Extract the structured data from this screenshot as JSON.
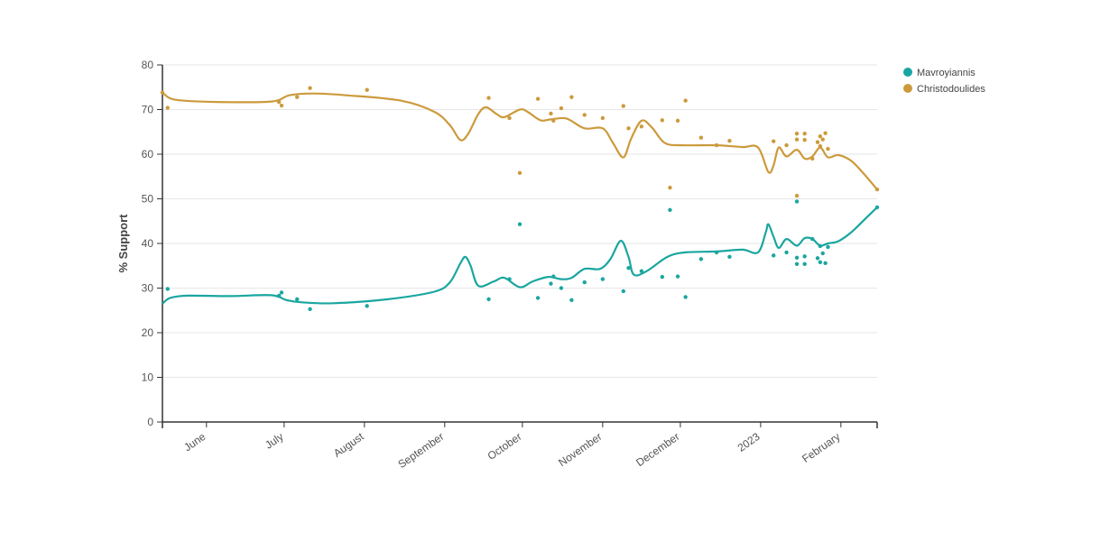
{
  "chart_data": {
    "type": "scatter",
    "title": "",
    "xlabel": "",
    "ylabel": "% Support",
    "ylim": [
      0,
      80
    ],
    "yticks": [
      0,
      10,
      20,
      30,
      40,
      50,
      60,
      70,
      80
    ],
    "xlim": [
      "2022-05-15",
      "2023-02-15"
    ],
    "xticks": [
      {
        "date": "2022-06-01",
        "label": "June"
      },
      {
        "date": "2022-07-01",
        "label": "July"
      },
      {
        "date": "2022-08-01",
        "label": "August"
      },
      {
        "date": "2022-09-01",
        "label": "September"
      },
      {
        "date": "2022-10-01",
        "label": "October"
      },
      {
        "date": "2022-11-01",
        "label": "November"
      },
      {
        "date": "2022-12-01",
        "label": "December"
      },
      {
        "date": "2023-01-01",
        "label": "2023"
      },
      {
        "date": "2023-02-01",
        "label": "February"
      }
    ],
    "grid": true,
    "legend_position": "top-right",
    "series": [
      {
        "name": "Mavroyiannis",
        "color": "#1aa6a0",
        "points": [
          [
            "2022-05-17",
            29.8
          ],
          [
            "2022-06-29",
            28.3
          ],
          [
            "2022-06-30",
            29.0
          ],
          [
            "2022-07-06",
            27.5
          ],
          [
            "2022-07-11",
            25.3
          ],
          [
            "2022-08-02",
            26.0
          ],
          [
            "2022-09-18",
            27.5
          ],
          [
            "2022-09-26",
            32.0
          ],
          [
            "2022-09-30",
            44.3
          ],
          [
            "2022-10-07",
            27.8
          ],
          [
            "2022-10-12",
            31.0
          ],
          [
            "2022-10-13",
            32.6
          ],
          [
            "2022-10-16",
            30.0
          ],
          [
            "2022-10-20",
            27.3
          ],
          [
            "2022-10-25",
            31.3
          ],
          [
            "2022-11-01",
            32.0
          ],
          [
            "2022-11-09",
            29.3
          ],
          [
            "2022-11-11",
            34.5
          ],
          [
            "2022-11-16",
            33.8
          ],
          [
            "2022-11-24",
            32.5
          ],
          [
            "2022-11-27",
            47.5
          ],
          [
            "2022-11-30",
            32.6
          ],
          [
            "2022-12-03",
            28.0
          ],
          [
            "2022-12-09",
            36.5
          ],
          [
            "2022-12-15",
            38.0
          ],
          [
            "2022-12-20",
            37.0
          ],
          [
            "2023-01-06",
            37.3
          ],
          [
            "2023-01-11",
            38.0
          ],
          [
            "2023-01-15",
            49.4
          ],
          [
            "2023-01-15",
            36.8
          ],
          [
            "2023-01-15",
            35.4
          ],
          [
            "2023-01-18",
            37.1
          ],
          [
            "2023-01-18",
            35.4
          ],
          [
            "2023-01-21",
            41.0
          ],
          [
            "2023-01-23",
            36.7
          ],
          [
            "2023-01-24",
            39.4
          ],
          [
            "2023-01-24",
            35.8
          ],
          [
            "2023-01-25",
            37.8
          ],
          [
            "2023-01-26",
            35.6
          ],
          [
            "2023-01-27",
            39.2
          ],
          [
            "2023-02-15",
            48.1
          ]
        ],
        "trend": [
          [
            "2022-05-15",
            26.5
          ],
          [
            "2022-05-18",
            27.8
          ],
          [
            "2022-05-25",
            28.3
          ],
          [
            "2022-06-10",
            28.2
          ],
          [
            "2022-06-26",
            28.4
          ],
          [
            "2022-07-02",
            27.3
          ],
          [
            "2022-07-08",
            26.8
          ],
          [
            "2022-07-20",
            26.6
          ],
          [
            "2022-08-10",
            27.5
          ],
          [
            "2022-08-28",
            29.2
          ],
          [
            "2022-09-03",
            31.3
          ],
          [
            "2022-09-07",
            35.5
          ],
          [
            "2022-09-09",
            37.0
          ],
          [
            "2022-09-11",
            35.0
          ],
          [
            "2022-09-14",
            30.5
          ],
          [
            "2022-09-20",
            31.5
          ],
          [
            "2022-09-24",
            32.3
          ],
          [
            "2022-09-30",
            30.2
          ],
          [
            "2022-10-05",
            31.5
          ],
          [
            "2022-10-11",
            32.5
          ],
          [
            "2022-10-16",
            32.0
          ],
          [
            "2022-10-20",
            32.3
          ],
          [
            "2022-10-25",
            34.3
          ],
          [
            "2022-10-31",
            34.3
          ],
          [
            "2022-11-04",
            36.5
          ],
          [
            "2022-11-08",
            40.6
          ],
          [
            "2022-11-11",
            37.0
          ],
          [
            "2022-11-13",
            33.0
          ],
          [
            "2022-11-18",
            33.8
          ],
          [
            "2022-11-26",
            37.0
          ],
          [
            "2022-12-03",
            38.0
          ],
          [
            "2022-12-15",
            38.2
          ],
          [
            "2022-12-25",
            38.6
          ],
          [
            "2022-12-31",
            38.0
          ],
          [
            "2023-01-03",
            42.5
          ],
          [
            "2023-01-04",
            44.3
          ],
          [
            "2023-01-06",
            41.5
          ],
          [
            "2023-01-08",
            39.0
          ],
          [
            "2023-01-11",
            41.0
          ],
          [
            "2023-01-15",
            39.5
          ],
          [
            "2023-01-18",
            41.2
          ],
          [
            "2023-01-21",
            41.0
          ],
          [
            "2023-01-24",
            39.5
          ],
          [
            "2023-01-27",
            40.0
          ],
          [
            "2023-01-31",
            40.5
          ],
          [
            "2023-02-05",
            42.5
          ],
          [
            "2023-02-10",
            45.3
          ],
          [
            "2023-02-15",
            48.1
          ]
        ]
      },
      {
        "name": "Christodoulides",
        "color": "#cc9a3c",
        "points": [
          [
            "2022-05-15",
            73.8
          ],
          [
            "2022-05-17",
            70.4
          ],
          [
            "2022-06-29",
            71.7
          ],
          [
            "2022-06-30",
            70.9
          ],
          [
            "2022-07-06",
            72.8
          ],
          [
            "2022-07-11",
            74.8
          ],
          [
            "2022-08-02",
            74.4
          ],
          [
            "2022-09-18",
            72.6
          ],
          [
            "2022-09-26",
            68.1
          ],
          [
            "2022-09-30",
            55.8
          ],
          [
            "2022-10-07",
            72.4
          ],
          [
            "2022-10-12",
            69.1
          ],
          [
            "2022-10-13",
            67.5
          ],
          [
            "2022-10-16",
            70.3
          ],
          [
            "2022-10-20",
            72.8
          ],
          [
            "2022-10-25",
            68.8
          ],
          [
            "2022-11-01",
            68.1
          ],
          [
            "2022-11-09",
            70.8
          ],
          [
            "2022-11-11",
            65.8
          ],
          [
            "2022-11-16",
            66.2
          ],
          [
            "2022-11-24",
            67.6
          ],
          [
            "2022-11-27",
            52.5
          ],
          [
            "2022-11-30",
            67.5
          ],
          [
            "2022-12-03",
            72.0
          ],
          [
            "2022-12-09",
            63.7
          ],
          [
            "2022-12-15",
            62.0
          ],
          [
            "2022-12-20",
            63.0
          ],
          [
            "2023-01-06",
            62.9
          ],
          [
            "2023-01-11",
            62.0
          ],
          [
            "2023-01-15",
            64.6
          ],
          [
            "2023-01-15",
            63.3
          ],
          [
            "2023-01-15",
            50.7
          ],
          [
            "2023-01-18",
            64.6
          ],
          [
            "2023-01-18",
            63.2
          ],
          [
            "2023-01-21",
            59.0
          ],
          [
            "2023-01-23",
            62.7
          ],
          [
            "2023-01-24",
            64.0
          ],
          [
            "2023-01-24",
            61.8
          ],
          [
            "2023-01-25",
            63.3
          ],
          [
            "2023-01-26",
            64.7
          ],
          [
            "2023-01-27",
            61.2
          ],
          [
            "2023-02-15",
            52.1
          ]
        ],
        "trend": [
          [
            "2022-05-15",
            73.8
          ],
          [
            "2022-05-20",
            72.2
          ],
          [
            "2022-06-05",
            71.7
          ],
          [
            "2022-06-26",
            71.8
          ],
          [
            "2022-07-03",
            73.2
          ],
          [
            "2022-07-12",
            73.6
          ],
          [
            "2022-07-25",
            73.2
          ],
          [
            "2022-08-15",
            72.0
          ],
          [
            "2022-08-28",
            69.5
          ],
          [
            "2022-09-03",
            66.5
          ],
          [
            "2022-09-07",
            63.2
          ],
          [
            "2022-09-10",
            64.5
          ],
          [
            "2022-09-14",
            69.0
          ],
          [
            "2022-09-17",
            70.5
          ],
          [
            "2022-09-21",
            69.0
          ],
          [
            "2022-09-24",
            68.3
          ],
          [
            "2022-09-30",
            70.0
          ],
          [
            "2022-10-03",
            69.5
          ],
          [
            "2022-10-08",
            67.6
          ],
          [
            "2022-10-12",
            67.8
          ],
          [
            "2022-10-18",
            68.0
          ],
          [
            "2022-10-25",
            65.8
          ],
          [
            "2022-11-01",
            65.8
          ],
          [
            "2022-11-05",
            62.5
          ],
          [
            "2022-11-09",
            59.3
          ],
          [
            "2022-11-12",
            63.5
          ],
          [
            "2022-11-16",
            67.5
          ],
          [
            "2022-11-20",
            66.0
          ],
          [
            "2022-11-25",
            62.5
          ],
          [
            "2022-12-02",
            62.0
          ],
          [
            "2022-12-15",
            62.0
          ],
          [
            "2022-12-25",
            61.6
          ],
          [
            "2022-12-31",
            61.5
          ],
          [
            "2023-01-04",
            56.0
          ],
          [
            "2023-01-06",
            57.5
          ],
          [
            "2023-01-08",
            61.5
          ],
          [
            "2023-01-11",
            59.5
          ],
          [
            "2023-01-15",
            61.0
          ],
          [
            "2023-01-18",
            59.0
          ],
          [
            "2023-01-21",
            59.5
          ],
          [
            "2023-01-24",
            61.5
          ],
          [
            "2023-01-27",
            59.3
          ],
          [
            "2023-01-31",
            59.8
          ],
          [
            "2023-02-05",
            58.5
          ],
          [
            "2023-02-10",
            55.5
          ],
          [
            "2023-02-15",
            52.1
          ]
        ]
      }
    ]
  }
}
